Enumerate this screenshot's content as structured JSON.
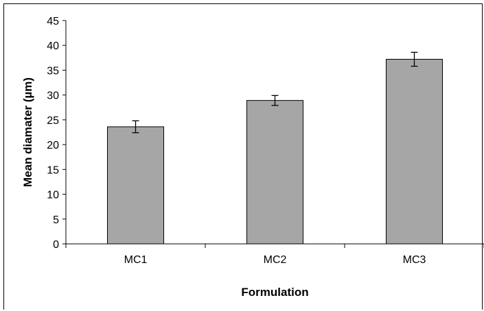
{
  "chart_data": {
    "type": "bar",
    "title": "",
    "xlabel": "Formulation",
    "ylabel": "Mean diamater (µm)",
    "categories": [
      "MC1",
      "MC2",
      "MC3"
    ],
    "values": [
      23.6,
      28.9,
      37.2
    ],
    "errors": [
      1.2,
      1.0,
      1.4
    ],
    "ylim": [
      0,
      45
    ],
    "yticks": [
      0,
      5,
      10,
      15,
      20,
      25,
      30,
      35,
      40,
      45
    ],
    "grid": false,
    "legend": "none",
    "bar_color": "#a6a6a6"
  }
}
